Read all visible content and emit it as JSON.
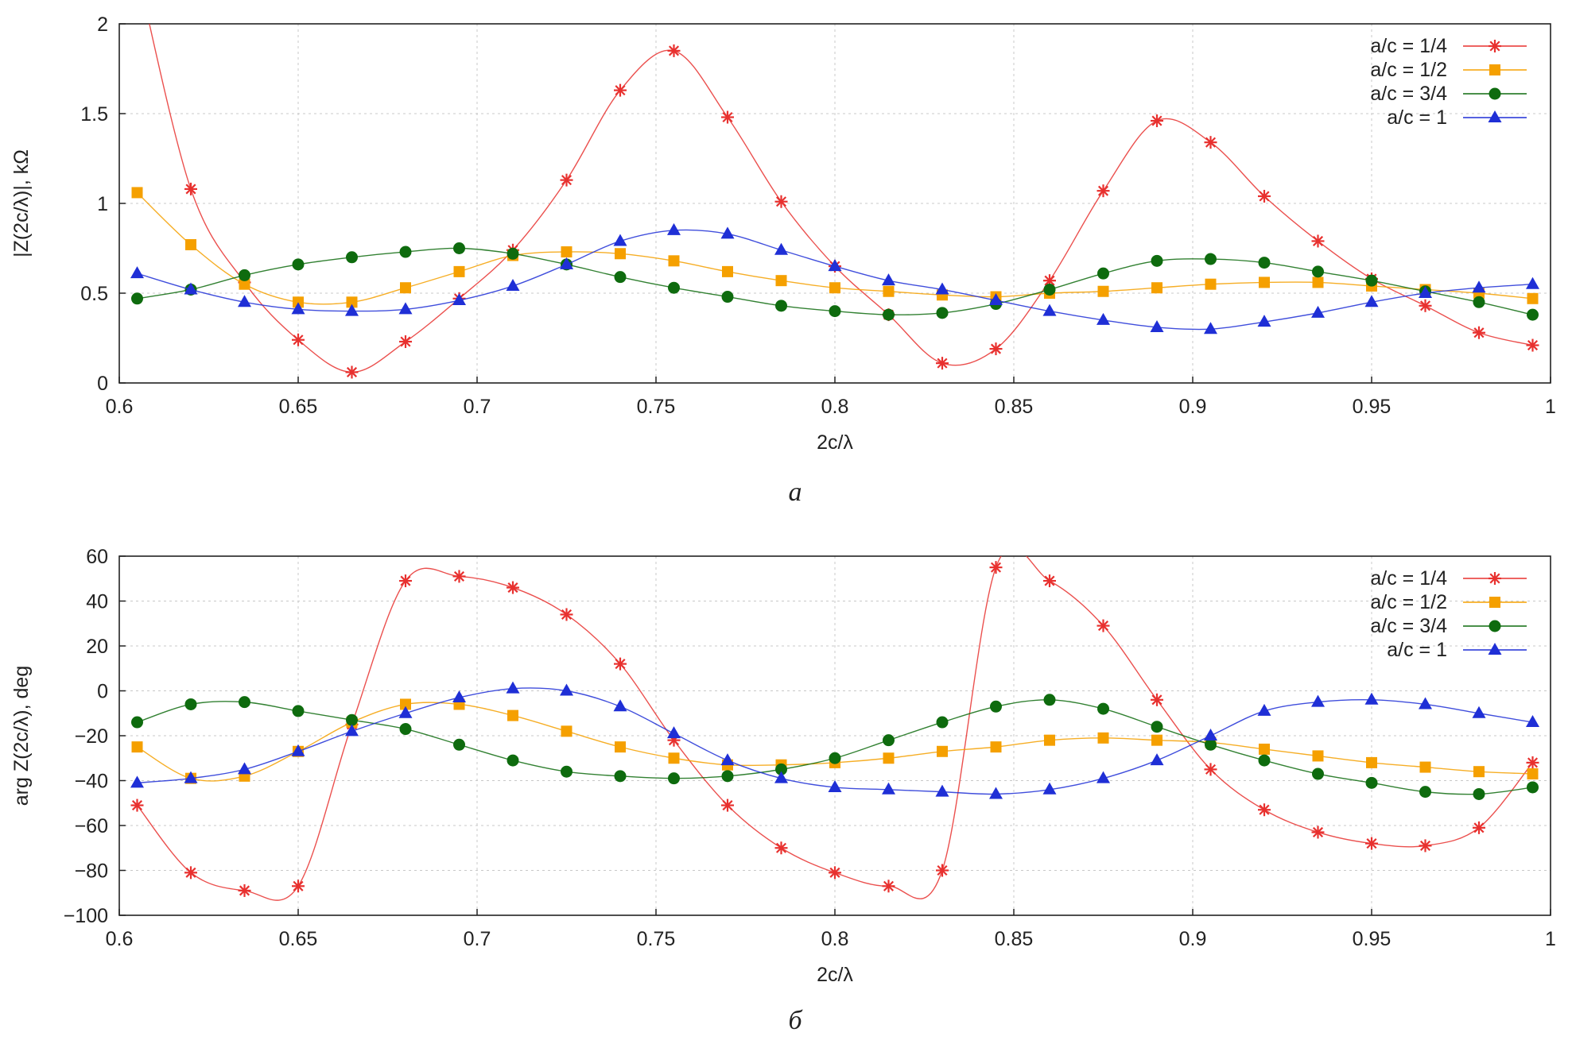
{
  "chart_data": [
    {
      "type": "line",
      "caption": "a",
      "xlabel": "2c/λ",
      "ylabel": "|Z(2c/λ)|, kΩ",
      "xlim": [
        0.6,
        1.0
      ],
      "ylim": [
        0,
        2
      ],
      "xticks": [
        0.6,
        0.65,
        0.7,
        0.75,
        0.8,
        0.85,
        0.9,
        0.95,
        1
      ],
      "xtick_labels": [
        "0.6",
        "0.65",
        "0.7",
        "0.75",
        "0.8",
        "0.85",
        "0.9",
        "0.95",
        "1"
      ],
      "yticks": [
        0,
        0.5,
        1,
        1.5,
        2
      ],
      "ytick_labels": [
        "0",
        "0.5",
        "1",
        "1.5",
        "2"
      ],
      "grid": true,
      "legend_position": "top-right",
      "x": [
        0.605,
        0.62,
        0.635,
        0.65,
        0.665,
        0.68,
        0.695,
        0.71,
        0.725,
        0.74,
        0.755,
        0.77,
        0.785,
        0.8,
        0.815,
        0.83,
        0.845,
        0.86,
        0.875,
        0.89,
        0.905,
        0.92,
        0.935,
        0.95,
        0.965,
        0.98,
        0.995
      ],
      "series": [
        {
          "name": "a/c = 1/4",
          "color": "#e8312f",
          "marker": "star",
          "values": [
            2.3,
            1.08,
            0.56,
            0.24,
            0.06,
            0.23,
            0.47,
            0.74,
            1.13,
            1.63,
            1.85,
            1.48,
            1.01,
            0.65,
            0.38,
            0.11,
            0.19,
            0.57,
            1.07,
            1.46,
            1.34,
            1.04,
            0.79,
            0.58,
            0.43,
            0.28,
            0.21
          ]
        },
        {
          "name": "a/c = 1/2",
          "color": "#f5a000",
          "marker": "square",
          "values": [
            1.06,
            0.77,
            0.55,
            0.45,
            0.45,
            0.53,
            0.62,
            0.71,
            0.73,
            0.72,
            0.68,
            0.62,
            0.57,
            0.53,
            0.51,
            0.49,
            0.48,
            0.5,
            0.51,
            0.53,
            0.55,
            0.56,
            0.56,
            0.54,
            0.52,
            0.5,
            0.47
          ]
        },
        {
          "name": "a/c = 3/4",
          "color": "#0e6b0e",
          "marker": "circle",
          "values": [
            0.47,
            0.52,
            0.6,
            0.66,
            0.7,
            0.73,
            0.75,
            0.72,
            0.66,
            0.59,
            0.53,
            0.48,
            0.43,
            0.4,
            0.38,
            0.39,
            0.44,
            0.52,
            0.61,
            0.68,
            0.69,
            0.67,
            0.62,
            0.57,
            0.51,
            0.45,
            0.38
          ]
        },
        {
          "name": "a/c =   1",
          "color": "#1f2fd6",
          "marker": "triangle",
          "values": [
            0.61,
            0.52,
            0.45,
            0.41,
            0.4,
            0.41,
            0.46,
            0.54,
            0.66,
            0.79,
            0.85,
            0.83,
            0.74,
            0.65,
            0.57,
            0.52,
            0.46,
            0.4,
            0.35,
            0.31,
            0.3,
            0.34,
            0.39,
            0.45,
            0.5,
            0.53,
            0.55
          ]
        }
      ]
    },
    {
      "type": "line",
      "caption": "б",
      "xlabel": "2c/λ",
      "ylabel": "arg Z(2c/λ), deg",
      "xlim": [
        0.6,
        1.0
      ],
      "ylim": [
        -100,
        60
      ],
      "xticks": [
        0.6,
        0.65,
        0.7,
        0.75,
        0.8,
        0.85,
        0.9,
        0.95,
        1
      ],
      "xtick_labels": [
        "0.6",
        "0.65",
        "0.7",
        "0.75",
        "0.8",
        "0.85",
        "0.9",
        "0.95",
        "1"
      ],
      "yticks": [
        -100,
        -80,
        -60,
        -40,
        -20,
        0,
        20,
        40,
        60
      ],
      "ytick_labels": [
        "−100",
        "−80",
        "−60",
        "−40",
        "−20",
        "0",
        "20",
        "40",
        "60"
      ],
      "grid": true,
      "legend_position": "top-right",
      "x": [
        0.605,
        0.62,
        0.635,
        0.65,
        0.665,
        0.68,
        0.695,
        0.71,
        0.725,
        0.74,
        0.755,
        0.77,
        0.785,
        0.8,
        0.815,
        0.83,
        0.845,
        0.86,
        0.875,
        0.89,
        0.905,
        0.92,
        0.935,
        0.95,
        0.965,
        0.98,
        0.995
      ],
      "series": [
        {
          "name": "a/c = 1/4",
          "color": "#e8312f",
          "marker": "star",
          "values": [
            -51,
            -81,
            -89,
            -87,
            -15,
            49,
            51,
            46,
            34,
            12,
            -22,
            -51,
            -70,
            -81,
            -87,
            -80,
            55,
            49,
            29,
            -4,
            -35,
            -53,
            -63,
            -68,
            -69,
            -61,
            -32
          ]
        },
        {
          "name": "a/c = 1/2",
          "color": "#f5a000",
          "marker": "square",
          "values": [
            -25,
            -39,
            -38,
            -27,
            -14,
            -6,
            -6,
            -11,
            -18,
            -25,
            -30,
            -33,
            -33,
            -32,
            -30,
            -27,
            -25,
            -22,
            -21,
            -22,
            -23,
            -26,
            -29,
            -32,
            -34,
            -36,
            -37
          ]
        },
        {
          "name": "a/c = 3/4",
          "color": "#0e6b0e",
          "marker": "circle",
          "values": [
            -14,
            -6,
            -5,
            -9,
            -13,
            -17,
            -24,
            -31,
            -36,
            -38,
            -39,
            -38,
            -35,
            -30,
            -22,
            -14,
            -7,
            -4,
            -8,
            -16,
            -24,
            -31,
            -37,
            -41,
            -45,
            -46,
            -43
          ]
        },
        {
          "name": "a/c =   1",
          "color": "#1f2fd6",
          "marker": "triangle",
          "values": [
            -41,
            -39,
            -35,
            -27,
            -18,
            -10,
            -3,
            1,
            0,
            -7,
            -19,
            -31,
            -39,
            -43,
            -44,
            -45,
            -46,
            -44,
            -39,
            -31,
            -20,
            -9,
            -5,
            -4,
            -6,
            -10,
            -14
          ]
        }
      ]
    }
  ]
}
